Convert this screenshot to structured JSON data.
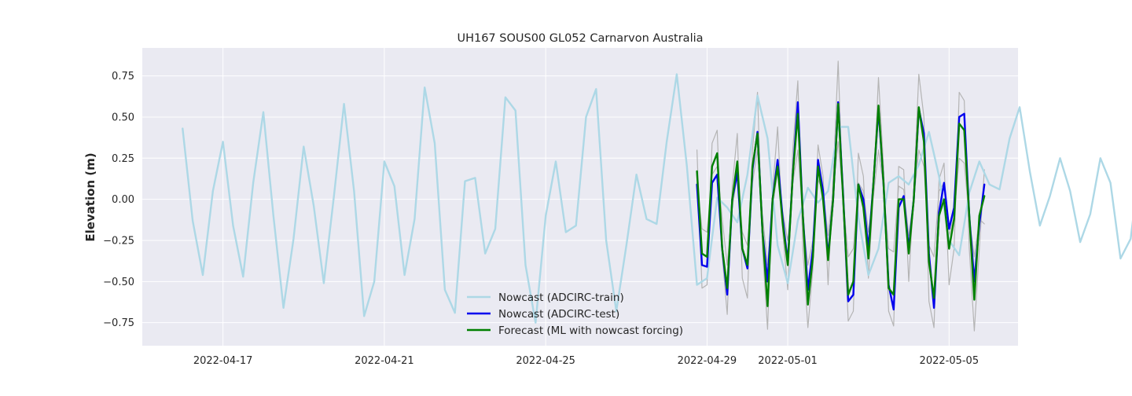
{
  "chart_data": {
    "type": "line",
    "title": "UH167 SOUS00 GL052 Carnarvon Australia",
    "xlabel": "",
    "ylabel": "Elevation (m)",
    "x_unit": "date",
    "xlim": [
      "2022-04-15T00:00",
      "2022-05-06T17:00"
    ],
    "ylim": [
      -0.89,
      0.92
    ],
    "x_ticks": [
      "2022-04-17",
      "2022-04-21",
      "2022-04-25",
      "2022-04-29",
      "2022-05-01",
      "2022-05-05"
    ],
    "y_ticks": [
      -0.75,
      -0.5,
      -0.25,
      0.0,
      0.25,
      0.5,
      0.75
    ],
    "y_tick_labels": [
      "−0.75",
      "−0.50",
      "−0.25",
      "0.00",
      "0.25",
      "0.50",
      "0.75"
    ],
    "grid": true,
    "legend_position": "bottom-center",
    "background": "#eaeaf2",
    "series": [
      {
        "name": "",
        "color": "#b4b4b4",
        "x_start": "2022-04-28T18:00",
        "x_step_hours": 3,
        "values": [
          0.3,
          -0.54,
          -0.52,
          0.34,
          0.42,
          -0.34,
          -0.7,
          0.08,
          0.4,
          -0.48,
          -0.6,
          0.3,
          0.65,
          -0.3,
          -0.79,
          0.05,
          0.44,
          -0.2,
          -0.55,
          0.3,
          0.72,
          -0.3,
          -0.78,
          -0.42,
          0.33,
          0.14,
          -0.52,
          0.12,
          0.84,
          -0.05,
          -0.74,
          -0.68,
          0.28,
          0.14,
          -0.48,
          0.05,
          0.74,
          0.2,
          -0.68,
          -0.77,
          0.2,
          0.18,
          -0.5,
          0.05,
          0.76,
          0.5,
          -0.62,
          -0.78,
          0.12,
          0.22,
          -0.52,
          -0.3,
          0.65,
          0.6,
          -0.3,
          -0.8,
          -0.3,
          0.18
        ]
      },
      {
        "name": "",
        "color": "#b4b4b4",
        "x_start": "2022-04-28T18:00",
        "x_step_hours": 3,
        "values": [
          0.1,
          -0.18,
          -0.2,
          0.15,
          0.2,
          -0.12,
          -0.4,
          -0.05,
          0.15,
          -0.2,
          -0.28,
          0.1,
          0.3,
          -0.1,
          -0.4,
          -0.05,
          0.18,
          -0.08,
          -0.25,
          0.1,
          0.3,
          -0.12,
          -0.4,
          -0.25,
          0.12,
          0.05,
          -0.22,
          0.05,
          0.35,
          0.0,
          -0.35,
          -0.3,
          0.1,
          0.05,
          -0.2,
          0.02,
          0.3,
          0.08,
          -0.3,
          -0.32,
          0.08,
          0.06,
          -0.22,
          0.0,
          0.3,
          0.2,
          -0.28,
          -0.35,
          0.05,
          0.1,
          -0.22,
          -0.1,
          0.25,
          0.22,
          -0.12,
          -0.35,
          -0.12,
          -0.15
        ]
      },
      {
        "name": "Nowcast (ADCIRC-train)",
        "color": "#add8e6",
        "x_start": "2022-04-16T00:00",
        "x_step_hours": 6,
        "values": [
          0.43,
          -0.13,
          -0.46,
          0.05,
          0.35,
          -0.16,
          -0.47,
          0.1,
          0.53,
          -0.1,
          -0.66,
          -0.24,
          0.32,
          -0.04,
          -0.51,
          0.02,
          0.58,
          0.05,
          -0.71,
          -0.5,
          0.23,
          0.08,
          -0.46,
          -0.12,
          0.68,
          0.34,
          -0.55,
          -0.69,
          0.11,
          0.13,
          -0.33,
          -0.18,
          0.62,
          0.54,
          -0.4,
          -0.75,
          -0.1,
          0.23,
          -0.2,
          -0.16,
          0.5,
          0.67,
          -0.25,
          -0.68,
          -0.28,
          0.15,
          -0.12,
          -0.15,
          0.35,
          0.76,
          0.2,
          -0.52,
          -0.48,
          0.01,
          -0.05,
          -0.14,
          0.15,
          0.63,
          0.37,
          -0.28,
          -0.51,
          -0.13,
          0.07,
          -0.02,
          0.05,
          0.44,
          0.44,
          -0.11,
          -0.46,
          -0.3,
          0.1,
          0.14,
          0.09,
          0.21,
          0.41,
          0.14,
          -0.25,
          -0.34,
          0.04,
          0.23,
          0.09,
          0.06,
          0.37,
          0.56,
          0.17,
          -0.16,
          0.02,
          0.25,
          0.05,
          -0.26,
          -0.09,
          0.25,
          0.1,
          -0.36,
          -0.24,
          0.26,
          0.18,
          -0.36,
          -0.35,
          0.15,
          0.15
        ]
      },
      {
        "name": "Nowcast (ADCIRC-test)",
        "color": "#0000ee",
        "x_start": "2022-04-28T18:00",
        "x_step_hours": 3,
        "values": [
          0.09,
          -0.4,
          -0.41,
          0.1,
          0.15,
          -0.3,
          -0.58,
          0.0,
          0.16,
          -0.3,
          -0.42,
          0.18,
          0.41,
          -0.2,
          -0.5,
          0.0,
          0.24,
          -0.12,
          -0.38,
          0.15,
          0.59,
          -0.1,
          -0.55,
          -0.3,
          0.24,
          0.05,
          -0.35,
          0.0,
          0.59,
          0.02,
          -0.62,
          -0.58,
          0.09,
          0.0,
          -0.3,
          0.1,
          0.55,
          0.1,
          -0.52,
          -0.67,
          -0.05,
          0.02,
          -0.3,
          0.0,
          0.55,
          0.4,
          -0.33,
          -0.66,
          -0.08,
          0.1,
          -0.18,
          -0.05,
          0.5,
          0.52,
          -0.1,
          -0.5,
          -0.15,
          0.09
        ]
      },
      {
        "name": "Forecast (ML with nowcast forcing)",
        "color": "#008000",
        "x_start": "2022-04-28T18:00",
        "x_step_hours": 3,
        "values": [
          0.17,
          -0.33,
          -0.35,
          0.2,
          0.28,
          -0.3,
          -0.54,
          0.0,
          0.23,
          -0.3,
          -0.4,
          0.2,
          0.4,
          -0.2,
          -0.65,
          0.0,
          0.2,
          -0.15,
          -0.4,
          0.15,
          0.52,
          -0.1,
          -0.64,
          -0.35,
          0.2,
          0.0,
          -0.37,
          0.0,
          0.58,
          0.0,
          -0.58,
          -0.5,
          0.09,
          -0.05,
          -0.36,
          0.1,
          0.57,
          0.1,
          -0.54,
          -0.58,
          0.0,
          0.0,
          -0.33,
          0.0,
          0.56,
          0.35,
          -0.38,
          -0.6,
          -0.1,
          0.0,
          -0.3,
          -0.12,
          0.46,
          0.42,
          -0.1,
          -0.61,
          -0.1,
          0.02
        ]
      }
    ]
  }
}
